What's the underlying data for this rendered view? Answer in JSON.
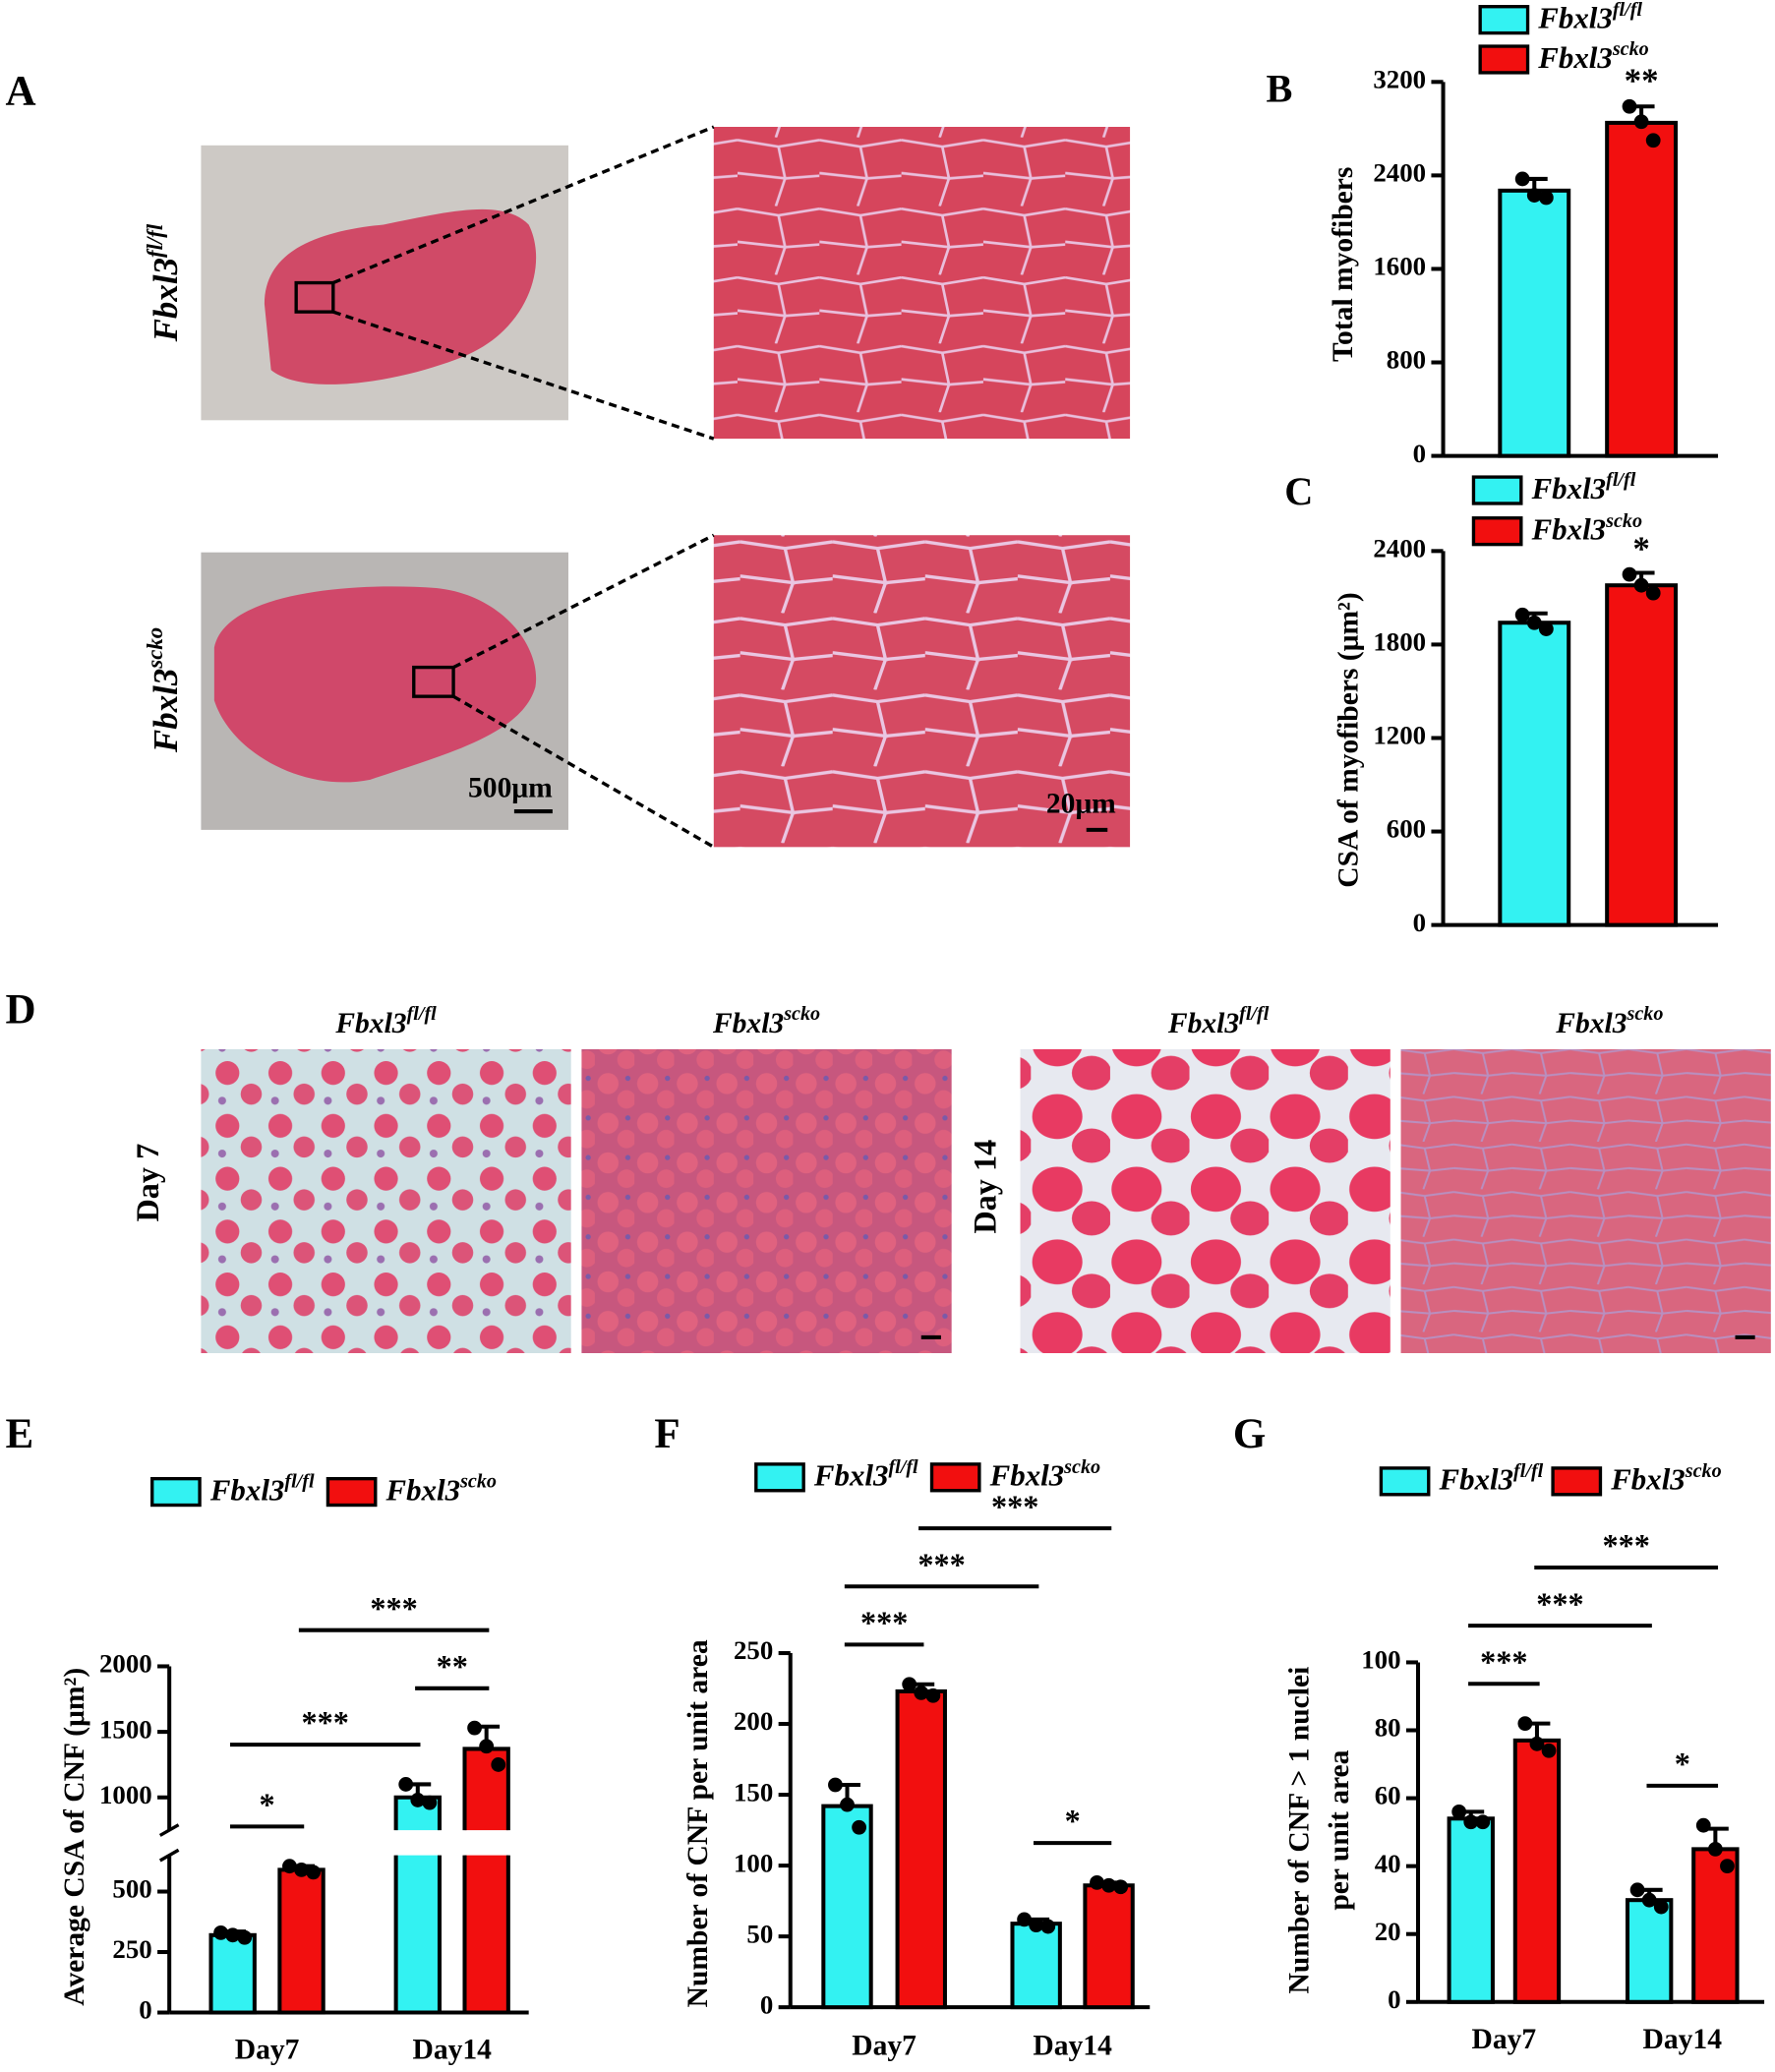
{
  "panels": [
    "A",
    "B",
    "C",
    "D",
    "E",
    "F",
    "G"
  ],
  "panel_a": {
    "rows": [
      {
        "label": "Fbxl3",
        "sup": "fl/fl"
      },
      {
        "label": "Fbxl3",
        "sup": "scko"
      }
    ],
    "scale_bars": [
      "500μm",
      "20μm"
    ]
  },
  "panel_d": {
    "columns": [
      {
        "label": "Fbxl3",
        "sup": "fl/fl"
      },
      {
        "label": "Fbxl3",
        "sup": "scko"
      },
      {
        "label": "Fbxl3",
        "sup": "fl/fl"
      },
      {
        "label": "Fbxl3",
        "sup": "scko"
      }
    ],
    "rows": [
      "Day 7",
      "Day 14"
    ]
  },
  "chart_data": [
    {
      "type": "bar",
      "y_label": [
        "Total myofibers"
      ],
      "ylim": [
        0,
        3200
      ],
      "yticks": [
        0,
        800,
        1600,
        2400,
        3200
      ],
      "series": [
        {
          "name": "Fbxl3",
          "superscript": "fl/fl",
          "color": "#33f2f2",
          "values": [
            2270
          ],
          "errors": [
            100
          ],
          "points": [
            [
              2370,
              2230,
              2210
            ]
          ]
        },
        {
          "name": "Fbxl3",
          "superscript": "scko",
          "color": "#f20f0f",
          "values": [
            2850
          ],
          "errors": [
            140
          ],
          "points": [
            [
              2990,
              2860,
              2700
            ]
          ]
        }
      ],
      "annotations": [
        {
          "series": 1,
          "index": 0,
          "label": "**"
        }
      ]
    },
    {
      "type": "bar",
      "y_label": [
        "CSA of myofibers (μm²)"
      ],
      "ylim": [
        0,
        2400
      ],
      "yticks": [
        0,
        600,
        1200,
        1800,
        2400
      ],
      "series": [
        {
          "name": "Fbxl3",
          "superscript": "fl/fl",
          "color": "#33f2f2",
          "values": [
            1940
          ],
          "errors": [
            60
          ],
          "points": [
            [
              1990,
              1940,
              1900
            ]
          ]
        },
        {
          "name": "Fbxl3",
          "superscript": "scko",
          "color": "#f20f0f",
          "values": [
            2180
          ],
          "errors": [
            80
          ],
          "points": [
            [
              2250,
              2180,
              2130
            ]
          ]
        }
      ],
      "annotations": [
        {
          "series": 1,
          "index": 0,
          "label": "*"
        }
      ]
    },
    {
      "type": "bar",
      "y_label": [
        "Average CSA of CNF (μm²)"
      ],
      "categories": [
        "Day7",
        "Day14"
      ],
      "ylim": [
        0,
        2000
      ],
      "ybreak": [
        650,
        750
      ],
      "yticks": [
        0,
        250,
        500,
        1000,
        1500,
        2000
      ],
      "series": [
        {
          "name": "Fbxl3",
          "superscript": "fl/fl",
          "color": "#33f2f2",
          "values": [
            320,
            1000
          ],
          "errors": [
            15,
            100
          ],
          "points": [
            [
              330,
              320,
              310
            ],
            [
              1100,
              980,
              960
            ]
          ]
        },
        {
          "name": "Fbxl3",
          "superscript": "scko",
          "color": "#f20f0f",
          "values": [
            590,
            1370
          ],
          "errors": [
            15,
            170
          ],
          "points": [
            [
              605,
              590,
              580
            ],
            [
              1530,
              1390,
              1250
            ]
          ]
        }
      ],
      "comparisons": [
        {
          "from": [
            0,
            0
          ],
          "to": [
            0,
            1
          ],
          "label": "*"
        },
        {
          "from": [
            1,
            0
          ],
          "to": [
            1,
            1
          ],
          "label": "**"
        },
        {
          "from": [
            0,
            0
          ],
          "to": [
            1,
            0
          ],
          "label": "***"
        },
        {
          "from": [
            0,
            1
          ],
          "to": [
            1,
            1
          ],
          "label": "***"
        }
      ]
    },
    {
      "type": "bar",
      "y_label": [
        "Number of CNF per unit area"
      ],
      "categories": [
        "Day7",
        "Day14"
      ],
      "ylim": [
        0,
        250
      ],
      "yticks": [
        0,
        50,
        100,
        150,
        200,
        250
      ],
      "series": [
        {
          "name": "Fbxl3",
          "superscript": "fl/fl",
          "color": "#33f2f2",
          "values": [
            142,
            59
          ],
          "errors": [
            15,
            3
          ],
          "points": [
            [
              157,
              143,
              127
            ],
            [
              62,
              58,
              57
            ]
          ]
        },
        {
          "name": "Fbxl3",
          "superscript": "scko",
          "color": "#f20f0f",
          "values": [
            223,
            86
          ],
          "errors": [
            5,
            2
          ],
          "points": [
            [
              228,
              222,
              220
            ],
            [
              88,
              86,
              85
            ]
          ]
        }
      ],
      "comparisons": [
        {
          "from": [
            0,
            0
          ],
          "to": [
            0,
            1
          ],
          "label": "***"
        },
        {
          "from": [
            1,
            0
          ],
          "to": [
            1,
            1
          ],
          "label": "*"
        },
        {
          "from": [
            0,
            0
          ],
          "to": [
            1,
            0
          ],
          "label": "***"
        },
        {
          "from": [
            0,
            1
          ],
          "to": [
            1,
            1
          ],
          "label": "***"
        }
      ]
    },
    {
      "type": "bar",
      "y_label": [
        "Number of CNF > 1 nuclei",
        "per unit area"
      ],
      "categories": [
        "Day7",
        "Day14"
      ],
      "ylim": [
        0,
        100
      ],
      "yticks": [
        0,
        20,
        40,
        60,
        80,
        100
      ],
      "series": [
        {
          "name": "Fbxl3",
          "superscript": "fl/fl",
          "color": "#33f2f2",
          "values": [
            54,
            30
          ],
          "errors": [
            2,
            3
          ],
          "points": [
            [
              56,
              53,
              53
            ],
            [
              33,
              30,
              28
            ]
          ]
        },
        {
          "name": "Fbxl3",
          "superscript": "scko",
          "color": "#f20f0f",
          "values": [
            77,
            45
          ],
          "errors": [
            5,
            6
          ],
          "points": [
            [
              82,
              76,
              74
            ],
            [
              52,
              45,
              40
            ]
          ]
        }
      ],
      "comparisons": [
        {
          "from": [
            0,
            0
          ],
          "to": [
            0,
            1
          ],
          "label": "***"
        },
        {
          "from": [
            1,
            0
          ],
          "to": [
            1,
            1
          ],
          "label": "*"
        },
        {
          "from": [
            0,
            0
          ],
          "to": [
            1,
            0
          ],
          "label": "***"
        },
        {
          "from": [
            0,
            1
          ],
          "to": [
            1,
            1
          ],
          "label": "***"
        }
      ]
    }
  ]
}
